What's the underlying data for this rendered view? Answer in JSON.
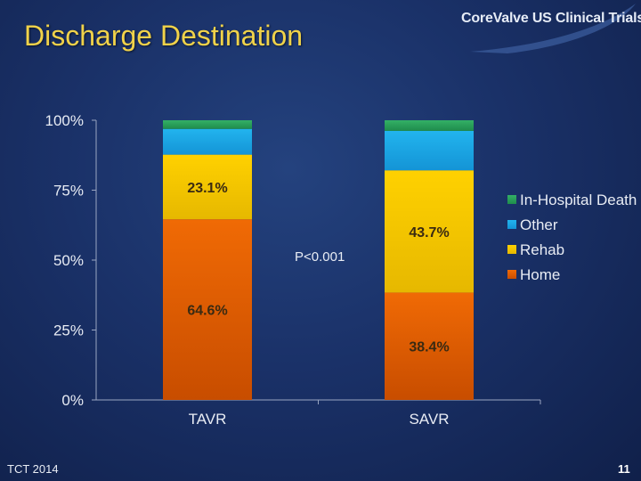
{
  "slide": {
    "title": "Discharge Destination",
    "logo_text": "CoreValve US Clinical Trials",
    "footer": "TCT 2014",
    "page_number": "11"
  },
  "colors": {
    "title": "#f0d24a",
    "background": "#1a3168"
  },
  "chart_data": {
    "type": "bar",
    "stacked": true,
    "categories": [
      "TAVR",
      "SAVR"
    ],
    "series": [
      {
        "name": "Home",
        "values": [
          64.6,
          38.4
        ],
        "color": "#e65c00"
      },
      {
        "name": "Rehab",
        "values": [
          23.1,
          43.7
        ],
        "color": "#f5c400"
      },
      {
        "name": "Other",
        "values": [
          9.2,
          14.1
        ],
        "color": "#1ea5e4"
      },
      {
        "name": "In-Hospital Death",
        "values": [
          3.1,
          3.8
        ],
        "color": "#2aa05a"
      }
    ],
    "data_labels": [
      {
        "category": "TAVR",
        "series": "Rehab",
        "text": "23.1%"
      },
      {
        "category": "TAVR",
        "series": "Home",
        "text": "64.6%"
      },
      {
        "category": "SAVR",
        "series": "Rehab",
        "text": "43.7%"
      },
      {
        "category": "SAVR",
        "series": "Home",
        "text": "38.4%"
      }
    ],
    "y_ticks": [
      "0%",
      "25%",
      "50%",
      "75%",
      "100%"
    ],
    "ylim": [
      0,
      100
    ],
    "annotation": "P<0.001",
    "legend_position": "right",
    "legend_order": [
      "In-Hospital Death",
      "Other",
      "Rehab",
      "Home"
    ],
    "grid": false
  }
}
